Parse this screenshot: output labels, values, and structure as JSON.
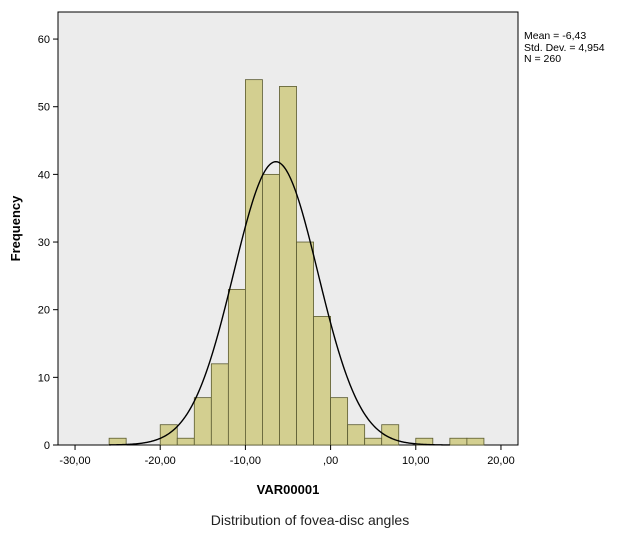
{
  "chart_data": {
    "type": "histogram",
    "title": "",
    "xlabel": "VAR00001",
    "ylabel": "Frequency",
    "xlim": [
      -32,
      22
    ],
    "ylim": [
      0,
      64
    ],
    "x_ticks": [
      -30,
      -20,
      -10,
      0,
      10,
      20
    ],
    "x_tick_labels": [
      "-30,00",
      "-20,00",
      "-10,00",
      ",00",
      "10,00",
      "20,00"
    ],
    "y_ticks": [
      0,
      10,
      20,
      30,
      40,
      50,
      60
    ],
    "bin_width": 2,
    "bins": [
      {
        "start": -26,
        "count": 1
      },
      {
        "start": -20,
        "count": 3
      },
      {
        "start": -18,
        "count": 1
      },
      {
        "start": -16,
        "count": 7
      },
      {
        "start": -14,
        "count": 12
      },
      {
        "start": -12,
        "count": 23
      },
      {
        "start": -10,
        "count": 54
      },
      {
        "start": -8,
        "count": 40
      },
      {
        "start": -6,
        "count": 53
      },
      {
        "start": -4,
        "count": 30
      },
      {
        "start": -2,
        "count": 19
      },
      {
        "start": 0,
        "count": 7
      },
      {
        "start": 2,
        "count": 3
      },
      {
        "start": 4,
        "count": 1
      },
      {
        "start": 6,
        "count": 3
      },
      {
        "start": 10,
        "count": 1
      },
      {
        "start": 14,
        "count": 1
      },
      {
        "start": 16,
        "count": 1
      }
    ],
    "normal_curve": {
      "mean": -6.43,
      "std": 4.954,
      "n": 260
    },
    "grid": false,
    "colors": {
      "bar_fill": "#d3cf90",
      "bar_stroke": "#5a5a30",
      "plot_bg": "#ececec",
      "curve": "#000000"
    }
  },
  "stats_box": {
    "mean": "Mean = -6,43",
    "std": "Std. Dev. = 4,954",
    "n": "N = 260"
  },
  "caption": "Distribution of fovea-disc angles"
}
